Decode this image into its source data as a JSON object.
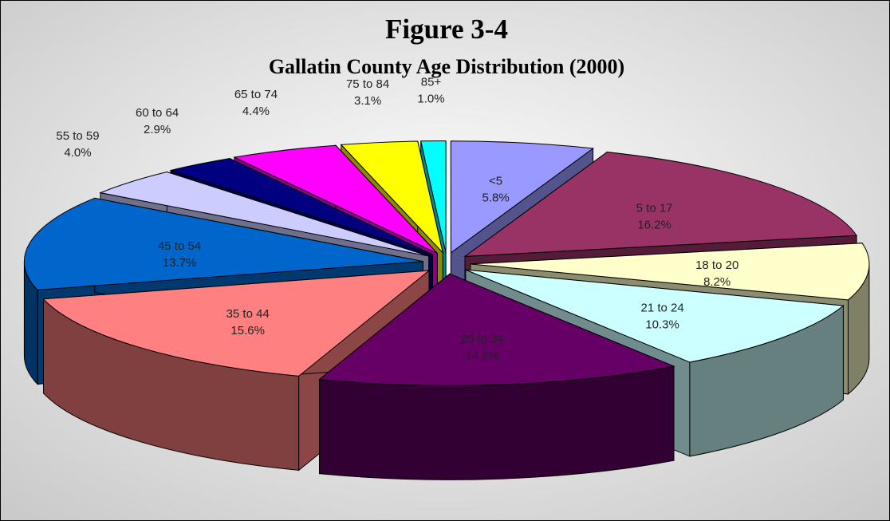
{
  "chart_data": {
    "type": "pie",
    "title": "Figure 3-4",
    "subtitle": "Gallatin County Age Distribution (2000)",
    "categories": [
      "<5",
      "5 to 17",
      "18 to 20",
      "21 to 24",
      "25 to 34",
      "35 to 44",
      "45 to 54",
      "55 to 59",
      "60 to 64",
      "65 to 74",
      "75 to 84",
      "85+"
    ],
    "values": [
      5.8,
      16.2,
      8.2,
      10.3,
      14.8,
      15.6,
      13.7,
      4.0,
      2.9,
      4.4,
      3.1,
      1.0
    ],
    "value_labels": [
      "5.8%",
      "16.2%",
      "8.2%",
      "10.3%",
      "14.8%",
      "15.6%",
      "13.7%",
      "4.0%",
      "2.9%",
      "4.4%",
      "3.1%",
      "1.0%"
    ],
    "colors": [
      "#9999ff",
      "#993366",
      "#ffffcc",
      "#ccffff",
      "#660066",
      "#ff8080",
      "#0066cc",
      "#ccccff",
      "#000080",
      "#ff00ff",
      "#ffff00",
      "#00ffff"
    ]
  }
}
